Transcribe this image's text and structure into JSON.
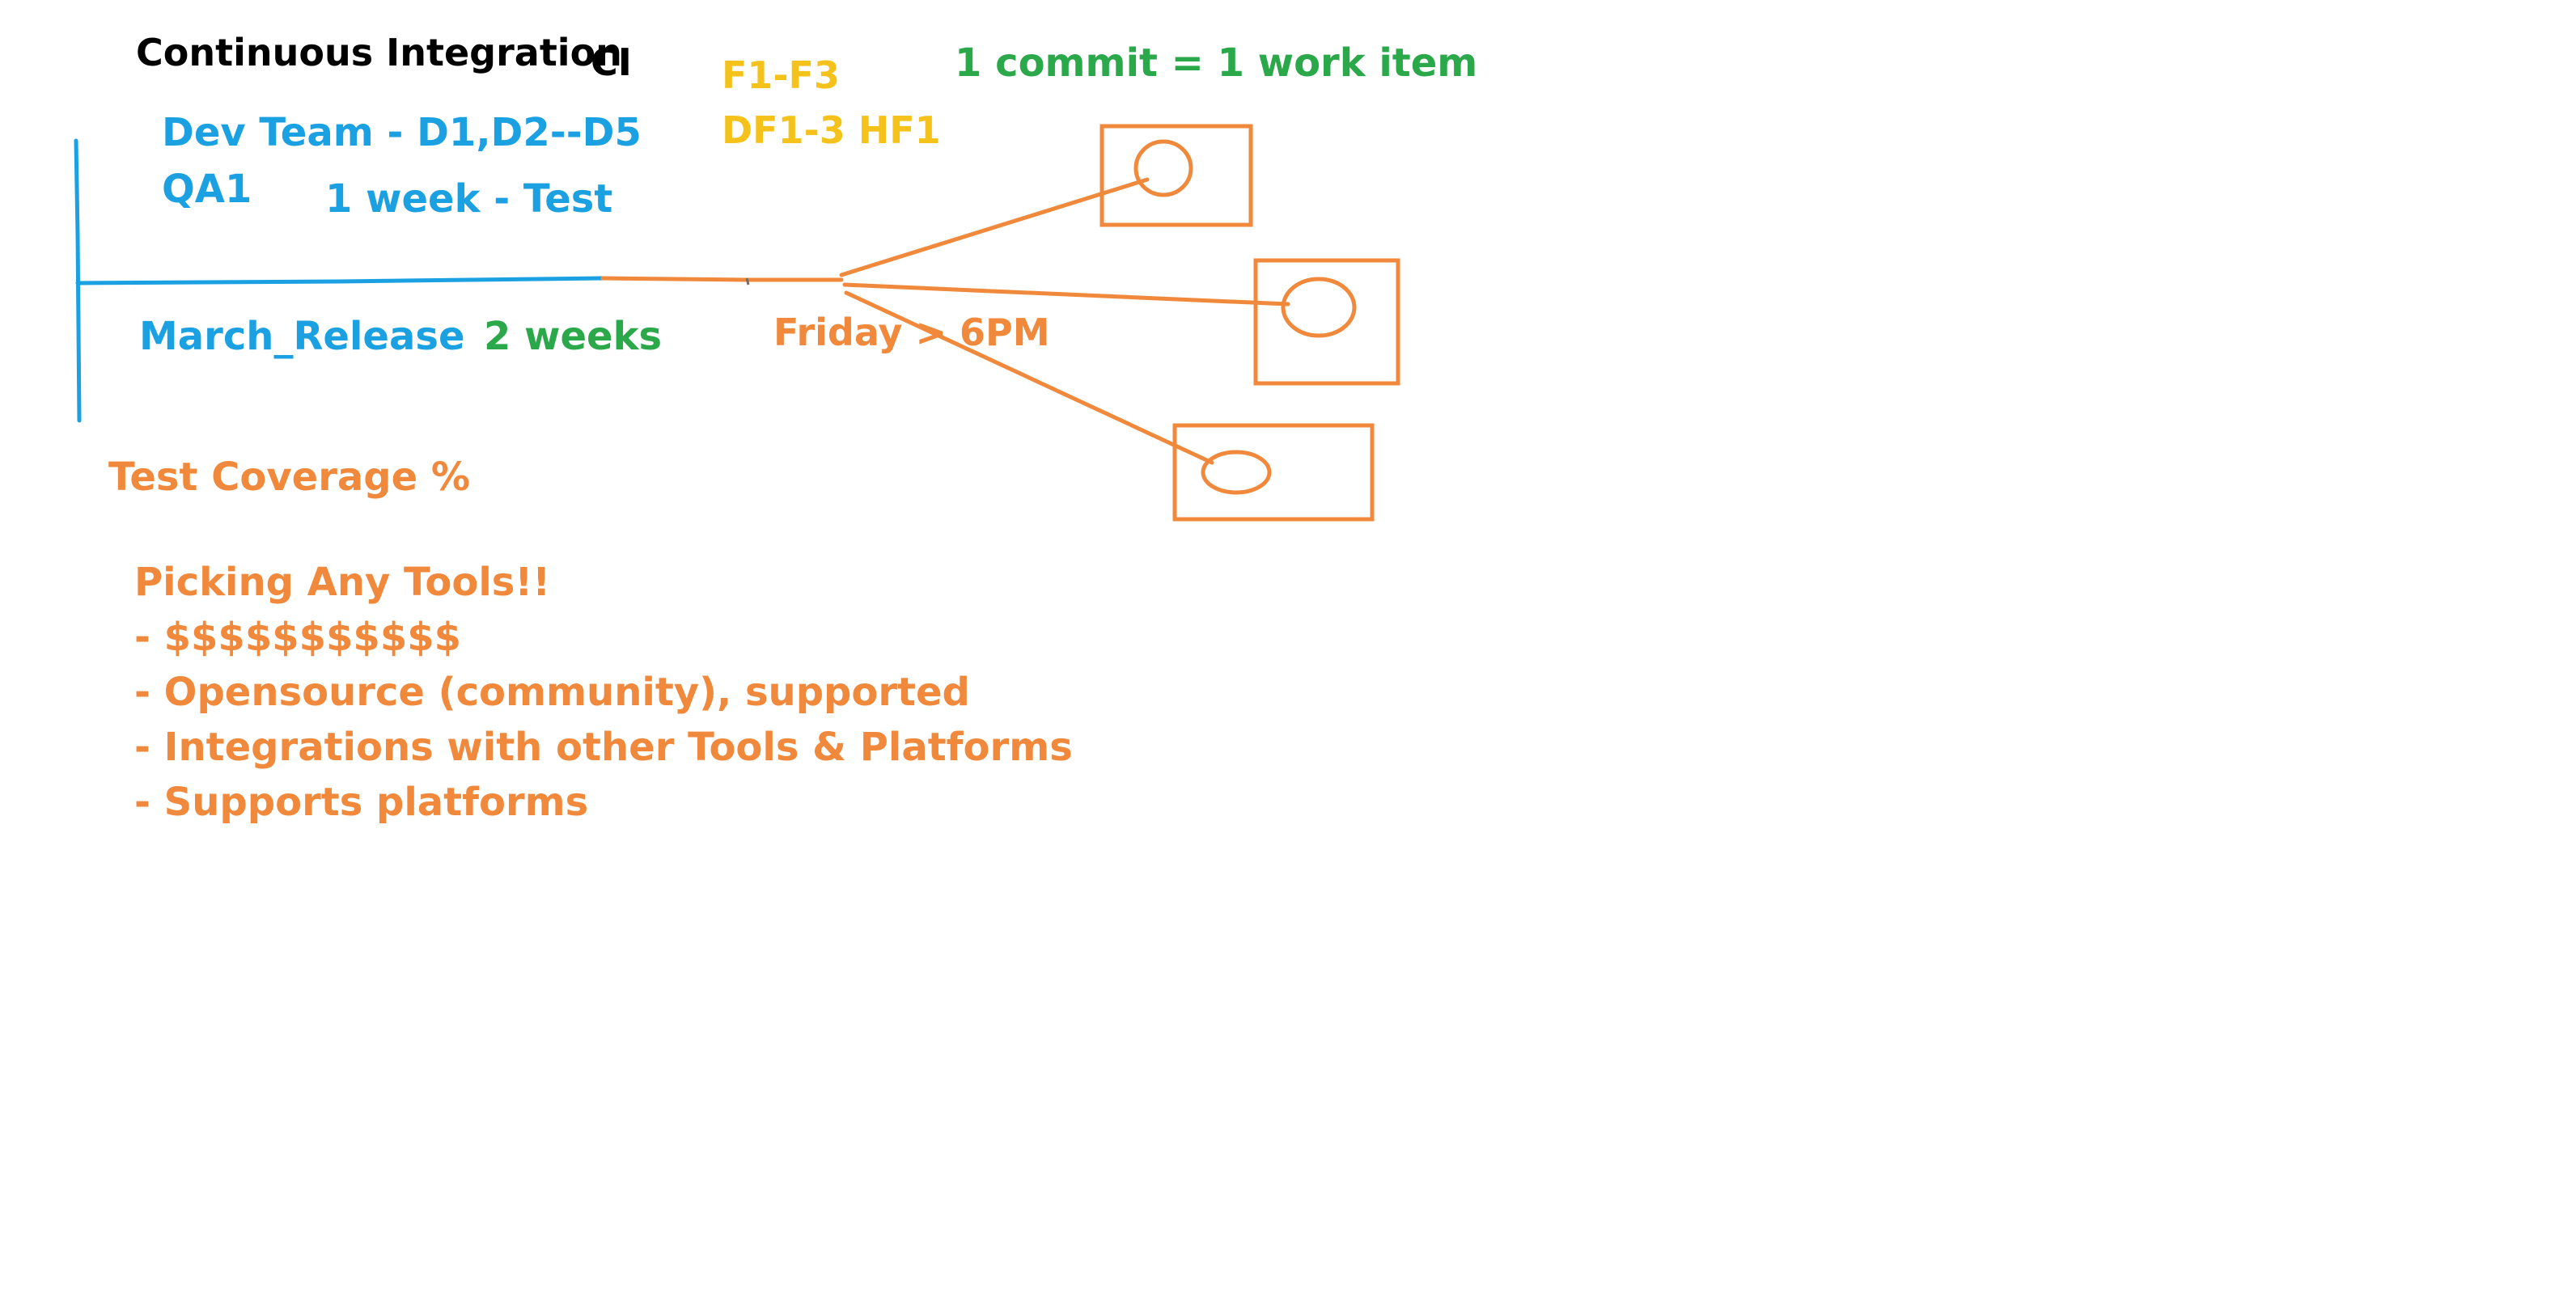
{
  "title": "Continuous Integration",
  "title_abbr": "CI",
  "features": "F1-F3",
  "defects": "DF1-3 HF1",
  "commit_rule": "1 commit = 1 work item",
  "dev_team": "Dev Team - D1,D2--D5",
  "qa": "QA1",
  "test_week": "1 week - Test",
  "release": "March_Release",
  "release_duration": "2 weeks",
  "build_time": "Friday > 6PM",
  "test_coverage": "Test Coverage %",
  "tools_heading": "Picking Any Tools!!",
  "tool_criteria": [
    "- $$$$$$$$$$$",
    "- Opensource (community), supported",
    "- Integrations with other Tools & Platforms",
    "- Supports platforms"
  ],
  "colors": {
    "black": "#000000",
    "blue": "#1ba1e2",
    "green": "#2aa84a",
    "yellow": "#f5c21b",
    "orange": "#f0893b"
  }
}
